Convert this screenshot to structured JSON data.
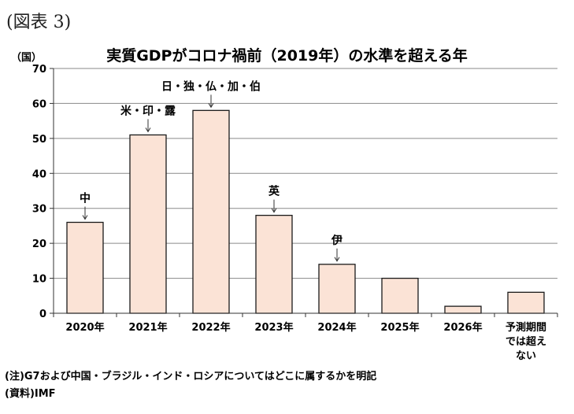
{
  "figure_label": "(図表 3)",
  "chart_data": {
    "type": "bar",
    "title": "実質GDPがコロナ禍前（2019年）の水準を超える年",
    "ylabel": "（国）",
    "xlabel": "",
    "ylim": [
      0,
      70
    ],
    "yticks": [
      0,
      10,
      20,
      30,
      40,
      50,
      60,
      70
    ],
    "grid": true,
    "bar_color": "#FBE3D6",
    "bar_edge_color": "#1a1a1a",
    "categories": [
      [
        "2020年"
      ],
      [
        "2021年"
      ],
      [
        "2022年"
      ],
      [
        "2023年"
      ],
      [
        "2024年"
      ],
      [
        "2025年"
      ],
      [
        "2026年"
      ],
      [
        "予測期間",
        "では超え",
        "ない"
      ]
    ],
    "values": [
      26,
      51,
      58,
      28,
      14,
      10,
      2,
      6
    ],
    "annotations": [
      {
        "category_index": 0,
        "text": "中"
      },
      {
        "category_index": 1,
        "text": "米・印・露"
      },
      {
        "category_index": 2,
        "text": "日・独・仏・加・伯"
      },
      {
        "category_index": 3,
        "text": "英"
      },
      {
        "category_index": 4,
        "text": "伊"
      }
    ]
  },
  "notes": {
    "note": "(注)G7および中国・ブラジル・インド・ロシアについてはどこに属するかを明記",
    "source": "(資料)IMF"
  }
}
